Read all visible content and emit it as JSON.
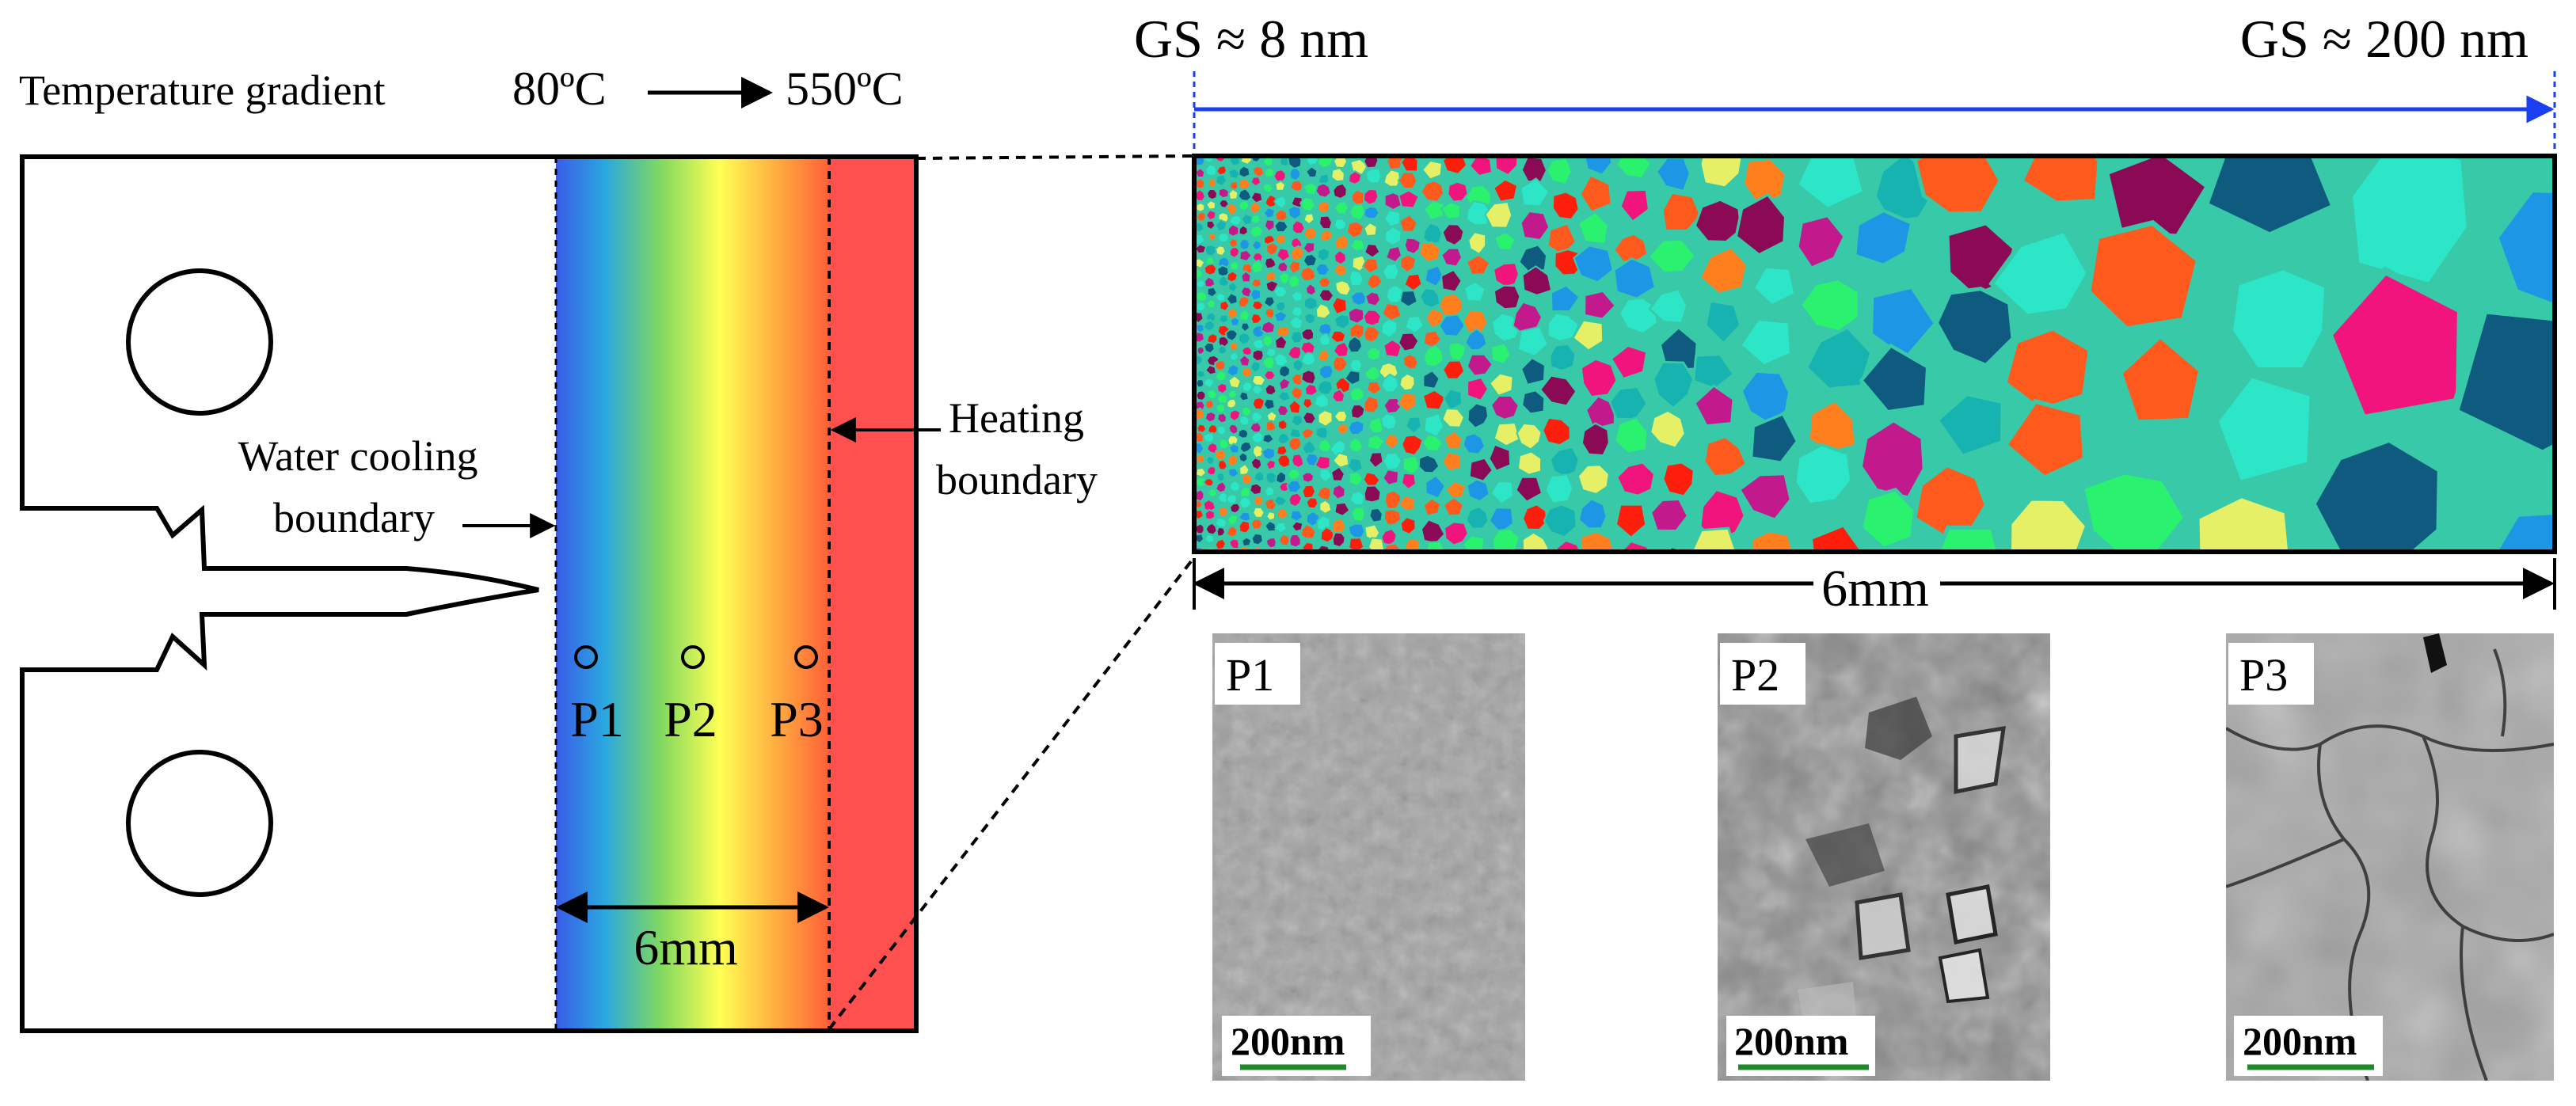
{
  "specimen": {
    "gradient_label": "Temperature gradient",
    "temp_low": "80ºC",
    "temp_high": "550ºC",
    "water_cooling_label_line1": "Water cooling",
    "water_cooling_label_line2": "boundary",
    "heating_label_line1": "Heating",
    "heating_label_line2": "boundary",
    "width_label": "6mm",
    "points": [
      "P1",
      "P2",
      "P3"
    ]
  },
  "microstructure": {
    "gs_left": "GS ≈ 8 nm",
    "gs_right": "GS ≈ 200 nm",
    "width_label": "6mm",
    "grain_colors": [
      "#17b3b0",
      "#0e5b7f",
      "#1e96e6",
      "#ff5a1e",
      "#f0147c",
      "#8a0a55",
      "#2bf26e",
      "#e6f066",
      "#ff1d0c",
      "#ff7e1e",
      "#2de6c8",
      "#c21a8c"
    ],
    "boundary_color": "#37c9a8"
  },
  "tem_images": [
    {
      "label": "P1",
      "scale_bar": "200nm"
    },
    {
      "label": "P2",
      "scale_bar": "200nm"
    },
    {
      "label": "P3",
      "scale_bar": "200nm"
    }
  ],
  "colors": {
    "cold": "#3a5be8",
    "hot": "#ff5050",
    "arrow_blue": "#1a3ff0",
    "scale_green": "#1f8a2a"
  }
}
